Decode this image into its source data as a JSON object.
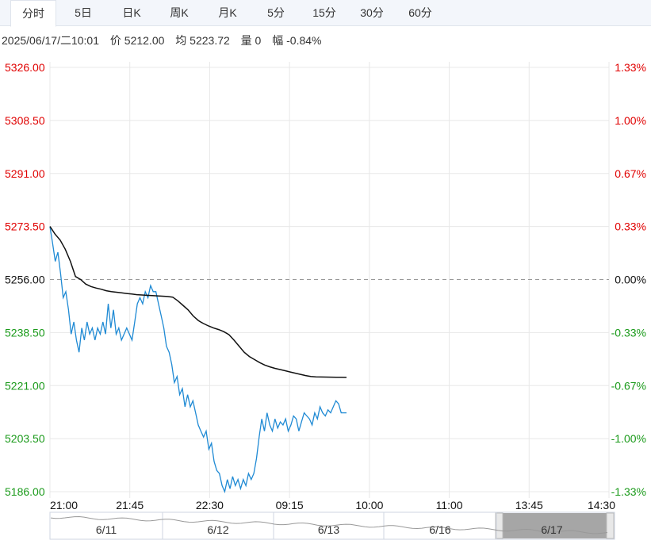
{
  "tabs": [
    {
      "label": "分时",
      "active": true
    },
    {
      "label": "5日",
      "active": false
    },
    {
      "label": "日K",
      "active": false
    },
    {
      "label": "周K",
      "active": false
    },
    {
      "label": "月K",
      "active": false
    },
    {
      "label": "5分",
      "active": false
    },
    {
      "label": "15分",
      "active": false
    },
    {
      "label": "30分",
      "active": false
    },
    {
      "label": "60分",
      "active": false
    }
  ],
  "info": {
    "datetime": "2025/06/17/二10:01",
    "price_label": "价 5212.00",
    "avg_label": "均 5223.72",
    "volume_label": "量 0",
    "change_label": "幅 -0.84%"
  },
  "colors": {
    "up": "#e00000",
    "down": "#1a9a1a",
    "price_line": "#1f8ad4",
    "avg_line": "#111111",
    "grid": "#e8e8e8",
    "baseline": "#999999"
  },
  "chart_data": {
    "type": "line",
    "prev_close": 5256.0,
    "ylim": [
      5186.0,
      5326.0
    ],
    "y_ticks": [
      "5326.00",
      "5308.50",
      "5291.00",
      "5273.50",
      "5256.00",
      "5238.50",
      "5221.00",
      "5203.50",
      "5186.00"
    ],
    "pct_ticks": [
      "1.33%",
      "1.00%",
      "0.67%",
      "0.33%",
      "0.00%",
      "-0.33%",
      "-0.67%",
      "-1.00%",
      "-1.33%"
    ],
    "x_ticks": [
      "21:00",
      "21:45",
      "22:30",
      "09:15",
      "10:00",
      "11:00",
      "13:45",
      "14:30"
    ],
    "series": [
      {
        "key": "price",
        "values": [
          5273.5,
          5268,
          5262,
          5265,
          5258,
          5250,
          5252,
          5246,
          5238,
          5242,
          5236,
          5232,
          5240,
          5236,
          5242,
          5238,
          5240,
          5236,
          5240,
          5238,
          5242,
          5238,
          5248,
          5240,
          5246,
          5238,
          5240,
          5236,
          5238,
          5240,
          5238,
          5236,
          5242,
          5248,
          5250,
          5248,
          5252,
          5250,
          5254,
          5252,
          5252,
          5248,
          5244,
          5240,
          5234,
          5232,
          5228,
          5222,
          5224,
          5218,
          5220,
          5214,
          5218,
          5214,
          5216,
          5212,
          5208,
          5206,
          5204,
          5206,
          5200,
          5202,
          5196,
          5193,
          5192,
          5188,
          5186,
          5190,
          5187,
          5191,
          5188,
          5190,
          5187,
          5190,
          5188,
          5192,
          5190,
          5192,
          5197,
          5204,
          5210,
          5206,
          5212,
          5208,
          5206,
          5210,
          5207,
          5209,
          5208,
          5210,
          5206,
          5208,
          5211,
          5210,
          5206,
          5209,
          5212,
          5211,
          5210,
          5208,
          5212,
          5210,
          5214,
          5212,
          5211,
          5213,
          5212,
          5214,
          5216,
          5215,
          5212,
          5212,
          5212
        ]
      },
      {
        "key": "average",
        "values": [
          5273.5,
          5271,
          5269,
          5266,
          5262,
          5257,
          5256,
          5254.5,
          5253.7,
          5253.2,
          5252.8,
          5252.3,
          5252,
          5251.8,
          5251.6,
          5251.4,
          5251.2,
          5251,
          5250.9,
          5250.8,
          5250.7,
          5250.6,
          5250.5,
          5250.4,
          5250.2,
          5249,
          5247.5,
          5246,
          5244,
          5242.5,
          5241.5,
          5240.7,
          5240,
          5239.5,
          5238.8,
          5237.8,
          5236,
          5234,
          5232,
          5230.6,
          5229.6,
          5228.6,
          5227.8,
          5227.2,
          5226.7,
          5226.3,
          5225.9,
          5225.5,
          5225.1,
          5224.7,
          5224.3,
          5224,
          5223.9,
          5223.85,
          5223.8,
          5223.78,
          5223.76,
          5223.74,
          5223.72
        ]
      }
    ],
    "navigator": {
      "dates": [
        "6/11",
        "6/12",
        "6/13",
        "6/16",
        "6/17"
      ]
    }
  }
}
